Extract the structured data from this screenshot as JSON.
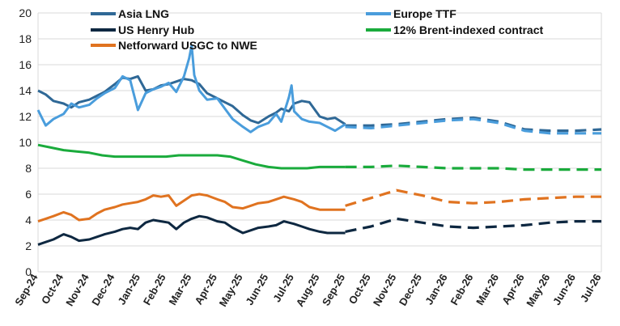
{
  "chart_data": {
    "type": "line",
    "title": "",
    "xlabel": "",
    "ylabel": "",
    "ylim": [
      0,
      20
    ],
    "yticks": [
      0,
      2,
      4,
      6,
      8,
      10,
      12,
      14,
      16,
      18,
      20
    ],
    "grid": true,
    "legend_position": "top",
    "categories": [
      "Sep-24",
      "Oct-24",
      "Nov-24",
      "Dec-24",
      "Jan-25",
      "Feb-25",
      "Mar-25",
      "Apr-25",
      "May-25",
      "Jun-25",
      "Jul-25",
      "Aug-25",
      "Sep-25",
      "Oct-25",
      "Nov-25",
      "Dec-25",
      "Jan-26",
      "Feb-26",
      "Mar-26",
      "Apr-26",
      "May-26",
      "Jun-26",
      "Jul-26"
    ],
    "forecast_start": "Sep-25",
    "series": [
      {
        "name": "Asia LNG",
        "color": "#2f6896",
        "historical": [
          [
            0,
            14.0
          ],
          [
            0.3,
            13.7
          ],
          [
            0.6,
            13.2
          ],
          [
            1,
            13.0
          ],
          [
            1.3,
            12.7
          ],
          [
            1.6,
            13.1
          ],
          [
            2,
            13.3
          ],
          [
            2.3,
            13.6
          ],
          [
            2.6,
            13.9
          ],
          [
            3,
            14.5
          ],
          [
            3.3,
            15.0
          ],
          [
            3.6,
            14.9
          ],
          [
            3.9,
            15.1
          ],
          [
            4.2,
            14.0
          ],
          [
            4.5,
            14.1
          ],
          [
            4.8,
            14.4
          ],
          [
            5.1,
            14.5
          ],
          [
            5.4,
            14.7
          ],
          [
            5.7,
            14.9
          ],
          [
            6.0,
            14.8
          ],
          [
            6.3,
            14.5
          ],
          [
            6.6,
            13.8
          ],
          [
            7,
            13.4
          ],
          [
            7.3,
            13.1
          ],
          [
            7.6,
            12.8
          ],
          [
            8,
            12.1
          ],
          [
            8.3,
            11.7
          ],
          [
            8.6,
            11.5
          ],
          [
            9,
            12.0
          ],
          [
            9.3,
            12.3
          ],
          [
            9.5,
            12.6
          ],
          [
            9.8,
            12.4
          ],
          [
            10,
            13.0
          ],
          [
            10.3,
            13.2
          ],
          [
            10.6,
            13.1
          ],
          [
            11,
            12.0
          ],
          [
            11.3,
            11.8
          ],
          [
            11.6,
            11.9
          ],
          [
            12,
            11.4
          ]
        ],
        "forecast": [
          [
            12,
            11.3
          ],
          [
            13,
            11.3
          ],
          [
            14,
            11.4
          ],
          [
            15,
            11.6
          ],
          [
            16,
            11.8
          ],
          [
            17,
            11.9
          ],
          [
            18,
            11.6
          ],
          [
            19,
            11.0
          ],
          [
            20,
            10.9
          ],
          [
            21,
            10.9
          ],
          [
            22,
            11.0
          ]
        ]
      },
      {
        "name": "Europe TTF",
        "color": "#4a9ddc",
        "historical": [
          [
            0,
            12.5
          ],
          [
            0.3,
            11.3
          ],
          [
            0.6,
            11.8
          ],
          [
            1,
            12.2
          ],
          [
            1.3,
            13.0
          ],
          [
            1.6,
            12.7
          ],
          [
            2,
            12.9
          ],
          [
            2.3,
            13.4
          ],
          [
            2.6,
            13.8
          ],
          [
            3,
            14.2
          ],
          [
            3.3,
            15.1
          ],
          [
            3.6,
            14.8
          ],
          [
            3.9,
            12.5
          ],
          [
            4.2,
            13.8
          ],
          [
            4.5,
            14.1
          ],
          [
            4.8,
            14.3
          ],
          [
            5.1,
            14.6
          ],
          [
            5.4,
            13.9
          ],
          [
            5.7,
            15.1
          ],
          [
            5.9,
            16.5
          ],
          [
            6.0,
            17.5
          ],
          [
            6.1,
            15.2
          ],
          [
            6.3,
            14.0
          ],
          [
            6.6,
            13.3
          ],
          [
            7,
            13.4
          ],
          [
            7.3,
            12.6
          ],
          [
            7.6,
            11.8
          ],
          [
            8,
            11.2
          ],
          [
            8.3,
            10.8
          ],
          [
            8.6,
            11.2
          ],
          [
            9,
            11.5
          ],
          [
            9.3,
            12.2
          ],
          [
            9.5,
            11.6
          ],
          [
            9.8,
            13.5
          ],
          [
            9.9,
            14.4
          ],
          [
            10.0,
            12.4
          ],
          [
            10.3,
            11.8
          ],
          [
            10.6,
            11.6
          ],
          [
            11,
            11.5
          ],
          [
            11.3,
            11.2
          ],
          [
            11.6,
            10.9
          ],
          [
            12,
            11.4
          ]
        ],
        "forecast": [
          [
            12,
            11.2
          ],
          [
            13,
            11.1
          ],
          [
            14,
            11.3
          ],
          [
            15,
            11.5
          ],
          [
            16,
            11.7
          ],
          [
            17,
            11.8
          ],
          [
            18,
            11.5
          ],
          [
            19,
            10.9
          ],
          [
            20,
            10.7
          ],
          [
            21,
            10.7
          ],
          [
            22,
            10.7
          ]
        ]
      },
      {
        "name": "US Henry Hub",
        "color": "#0e2841",
        "historical": [
          [
            0,
            2.1
          ],
          [
            0.3,
            2.3
          ],
          [
            0.6,
            2.5
          ],
          [
            1,
            2.9
          ],
          [
            1.3,
            2.7
          ],
          [
            1.6,
            2.4
          ],
          [
            2,
            2.5
          ],
          [
            2.3,
            2.7
          ],
          [
            2.6,
            2.9
          ],
          [
            3,
            3.1
          ],
          [
            3.3,
            3.3
          ],
          [
            3.6,
            3.4
          ],
          [
            3.9,
            3.3
          ],
          [
            4.2,
            3.8
          ],
          [
            4.5,
            4.0
          ],
          [
            4.8,
            3.9
          ],
          [
            5.1,
            3.8
          ],
          [
            5.4,
            3.3
          ],
          [
            5.7,
            3.8
          ],
          [
            6.0,
            4.1
          ],
          [
            6.3,
            4.3
          ],
          [
            6.6,
            4.2
          ],
          [
            7,
            3.9
          ],
          [
            7.3,
            3.8
          ],
          [
            7.6,
            3.4
          ],
          [
            8,
            3.0
          ],
          [
            8.3,
            3.2
          ],
          [
            8.6,
            3.4
          ],
          [
            9,
            3.5
          ],
          [
            9.3,
            3.6
          ],
          [
            9.6,
            3.9
          ],
          [
            10,
            3.7
          ],
          [
            10.3,
            3.5
          ],
          [
            10.6,
            3.3
          ],
          [
            11,
            3.1
          ],
          [
            11.3,
            3.0
          ],
          [
            11.6,
            3.0
          ],
          [
            12,
            3.0
          ]
        ],
        "forecast": [
          [
            12,
            3.1
          ],
          [
            13,
            3.5
          ],
          [
            14,
            4.1
          ],
          [
            15,
            3.8
          ],
          [
            16,
            3.5
          ],
          [
            17,
            3.4
          ],
          [
            18,
            3.5
          ],
          [
            19,
            3.6
          ],
          [
            20,
            3.8
          ],
          [
            21,
            3.9
          ],
          [
            22,
            3.9
          ]
        ]
      },
      {
        "name": "12% Brent-indexed contract",
        "color": "#1aab3c",
        "historical": [
          [
            0,
            9.8
          ],
          [
            0.5,
            9.6
          ],
          [
            1,
            9.4
          ],
          [
            1.5,
            9.3
          ],
          [
            2,
            9.2
          ],
          [
            2.5,
            9.0
          ],
          [
            3,
            8.9
          ],
          [
            3.5,
            8.9
          ],
          [
            4,
            8.9
          ],
          [
            4.5,
            8.9
          ],
          [
            5,
            8.9
          ],
          [
            5.5,
            9.0
          ],
          [
            6,
            9.0
          ],
          [
            6.5,
            9.0
          ],
          [
            7,
            9.0
          ],
          [
            7.5,
            8.9
          ],
          [
            8,
            8.6
          ],
          [
            8.5,
            8.3
          ],
          [
            9,
            8.1
          ],
          [
            9.5,
            8.0
          ],
          [
            10,
            8.0
          ],
          [
            10.5,
            8.0
          ],
          [
            11,
            8.1
          ],
          [
            11.5,
            8.1
          ],
          [
            12,
            8.1
          ]
        ],
        "forecast": [
          [
            12,
            8.1
          ],
          [
            13,
            8.1
          ],
          [
            14,
            8.2
          ],
          [
            15,
            8.1
          ],
          [
            16,
            8.0
          ],
          [
            17,
            8.0
          ],
          [
            18,
            8.0
          ],
          [
            19,
            7.9
          ],
          [
            20,
            7.9
          ],
          [
            21,
            7.9
          ],
          [
            22,
            7.9
          ]
        ]
      },
      {
        "name": "Netforward USGC to NWE",
        "color": "#e07320",
        "historical": [
          [
            0,
            3.9
          ],
          [
            0.3,
            4.1
          ],
          [
            0.6,
            4.3
          ],
          [
            1,
            4.6
          ],
          [
            1.3,
            4.4
          ],
          [
            1.6,
            4.0
          ],
          [
            2,
            4.1
          ],
          [
            2.3,
            4.5
          ],
          [
            2.6,
            4.8
          ],
          [
            3,
            5.0
          ],
          [
            3.3,
            5.2
          ],
          [
            3.6,
            5.3
          ],
          [
            3.9,
            5.4
          ],
          [
            4.2,
            5.6
          ],
          [
            4.5,
            5.9
          ],
          [
            4.8,
            5.8
          ],
          [
            5.1,
            5.9
          ],
          [
            5.4,
            5.1
          ],
          [
            5.7,
            5.5
          ],
          [
            6.0,
            5.9
          ],
          [
            6.3,
            6.0
          ],
          [
            6.6,
            5.9
          ],
          [
            7,
            5.6
          ],
          [
            7.3,
            5.4
          ],
          [
            7.6,
            5.0
          ],
          [
            8,
            4.9
          ],
          [
            8.3,
            5.1
          ],
          [
            8.6,
            5.3
          ],
          [
            9,
            5.4
          ],
          [
            9.3,
            5.6
          ],
          [
            9.6,
            5.8
          ],
          [
            10,
            5.6
          ],
          [
            10.3,
            5.4
          ],
          [
            10.6,
            5.0
          ],
          [
            11,
            4.8
          ],
          [
            11.3,
            4.8
          ],
          [
            11.6,
            4.8
          ],
          [
            12,
            4.8
          ]
        ],
        "forecast": [
          [
            12,
            5.1
          ],
          [
            13,
            5.7
          ],
          [
            14,
            6.3
          ],
          [
            15,
            5.9
          ],
          [
            16,
            5.4
          ],
          [
            17,
            5.3
          ],
          [
            18,
            5.4
          ],
          [
            19,
            5.6
          ],
          [
            20,
            5.7
          ],
          [
            21,
            5.8
          ],
          [
            22,
            5.8
          ]
        ]
      }
    ],
    "legend": [
      {
        "label": "Asia LNG",
        "color": "#2f6896"
      },
      {
        "label": "Europe TTF",
        "color": "#4a9ddc"
      },
      {
        "label": "US Henry Hub",
        "color": "#0e2841"
      },
      {
        "label": "12% Brent-indexed contract",
        "color": "#1aab3c"
      },
      {
        "label": "Netforward USGC to NWE",
        "color": "#e07320"
      }
    ]
  }
}
